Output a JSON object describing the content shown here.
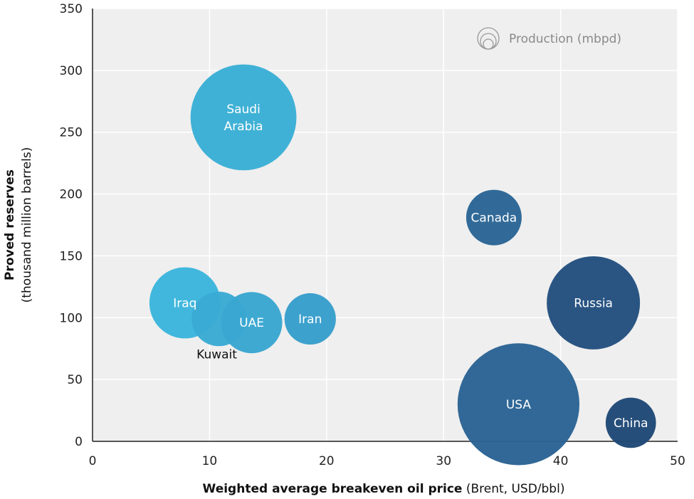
{
  "chart_data": {
    "type": "bubble",
    "xlabel_bold": "Weighted average breakeven oil price",
    "xlabel_rest": " (Brent, USD/bbl)",
    "ylabel_line1": "Proved reserves",
    "ylabel_line2": "(thousand million barrels)",
    "legend_label": "Production (mbpd)",
    "legend_position": "top-right",
    "xlim": [
      0,
      50
    ],
    "ylim": [
      0,
      350
    ],
    "x_ticks": [
      0,
      10,
      20,
      30,
      40,
      50
    ],
    "y_ticks": [
      0,
      50,
      100,
      150,
      200,
      250,
      300,
      350
    ],
    "grid": true,
    "plot_background": "#efefef",
    "points": [
      {
        "label_lines": [
          "Saudi",
          "Arabia"
        ],
        "x": 12.9,
        "y": 262,
        "size": 10.2,
        "color": "#3aaed5",
        "label_inside": true
      },
      {
        "label_lines": [
          "Iraq"
        ],
        "x": 7.9,
        "y": 112,
        "size": 4.6,
        "color": "#3bb5dc",
        "label_inside": true
      },
      {
        "label_lines": [
          "Kuwait"
        ],
        "x": 10.8,
        "y": 99,
        "size": 2.7,
        "color": "#3aaad4",
        "label_inside": false
      },
      {
        "label_lines": [
          "UAE"
        ],
        "x": 13.6,
        "y": 96,
        "size": 3.4,
        "color": "#39a6d1",
        "label_inside": true
      },
      {
        "label_lines": [
          "Iran"
        ],
        "x": 18.6,
        "y": 99,
        "size": 2.4,
        "color": "#379ecb",
        "label_inside": true
      },
      {
        "label_lines": [
          "Canada"
        ],
        "x": 34.3,
        "y": 181,
        "size": 2.8,
        "color": "#2a6595",
        "label_inside": true
      },
      {
        "label_lines": [
          "Russia"
        ],
        "x": 42.8,
        "y": 112,
        "size": 7.9,
        "color": "#23507f",
        "label_inside": true
      },
      {
        "label_lines": [
          "USA"
        ],
        "x": 36.4,
        "y": 30,
        "size": 13.5,
        "color": "#2a6394",
        "label_inside": true
      },
      {
        "label_lines": [
          "China"
        ],
        "x": 46.0,
        "y": 15,
        "size": 2.3,
        "color": "#1f4876",
        "label_inside": true
      }
    ]
  }
}
